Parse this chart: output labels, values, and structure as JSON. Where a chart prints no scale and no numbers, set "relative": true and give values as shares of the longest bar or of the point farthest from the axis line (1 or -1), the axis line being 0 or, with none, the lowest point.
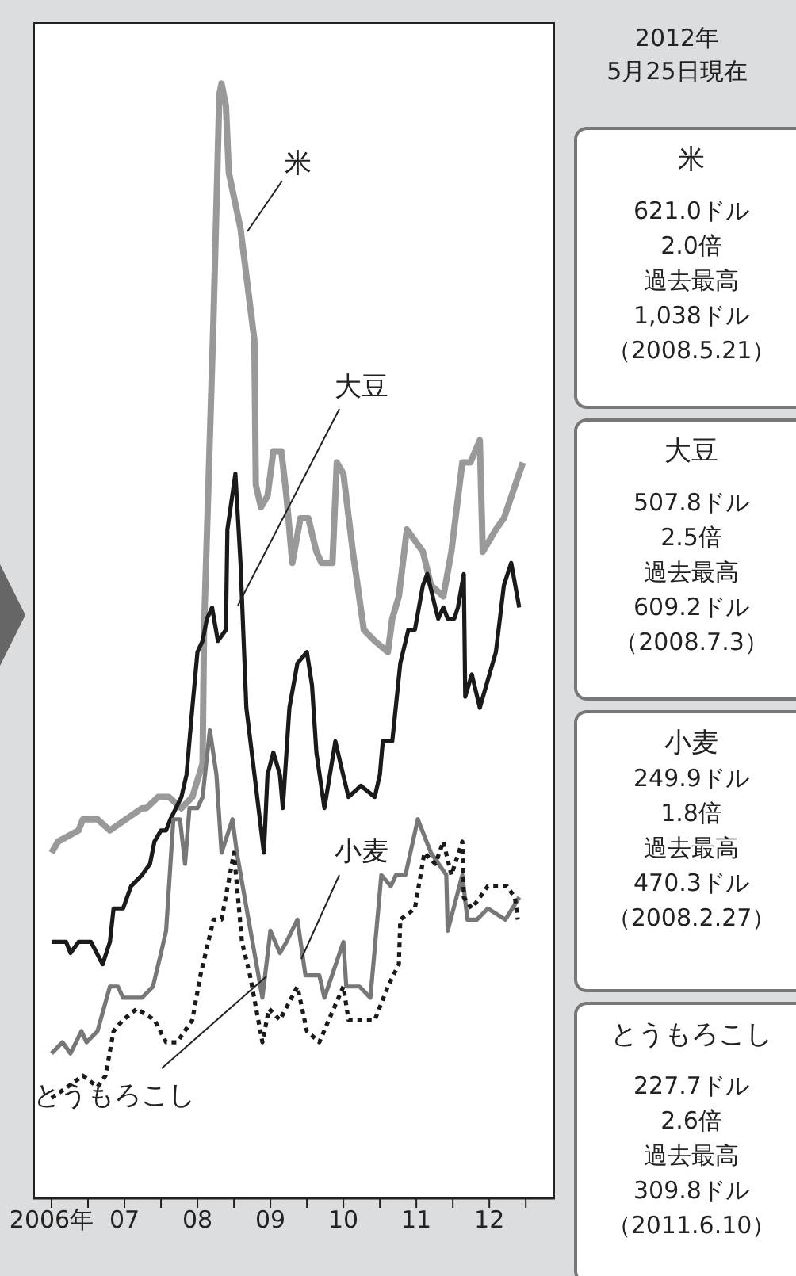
{
  "chart_data": [
    {
      "type": "line",
      "relative": true,
      "xlim": [
        2005.75,
        2012.9
      ],
      "xticks": [
        {
          "value": 2006,
          "label": "2006年"
        },
        {
          "value": 2006.5,
          "label": null
        },
        {
          "value": 2007,
          "label": "07"
        },
        {
          "value": 2007.5,
          "label": null
        },
        {
          "value": 2008,
          "label": "08"
        },
        {
          "value": 2008.5,
          "label": null
        },
        {
          "value": 2009,
          "label": "09"
        },
        {
          "value": 2009.5,
          "label": null
        },
        {
          "value": 2010,
          "label": "10"
        },
        {
          "value": 2010.5,
          "label": null
        },
        {
          "value": 2011,
          "label": "11"
        },
        {
          "value": 2011.5,
          "label": null
        },
        {
          "value": 2012,
          "label": "12"
        },
        {
          "value": 2012.5,
          "label": null
        }
      ],
      "series": [
        {
          "name": "米",
          "color": "#999999",
          "x": [
            2006.0,
            2006.09,
            2006.37,
            2006.43,
            2006.63,
            2006.8,
            2007.02,
            2007.24,
            2007.3,
            2007.46,
            2007.61,
            2007.78,
            2007.93,
            2008.07,
            2008.09,
            2008.22,
            2008.3,
            2008.33,
            2008.39,
            2008.43,
            2008.59,
            2008.78,
            2008.8,
            2008.87,
            2008.96,
            2009.04,
            2009.15,
            2009.22,
            2009.3,
            2009.41,
            2009.52,
            2009.63,
            2009.7,
            2009.85,
            2009.91,
            2010.0,
            2010.13,
            2010.28,
            2010.43,
            2010.61,
            2010.67,
            2010.76,
            2010.87,
            2011.09,
            2011.2,
            2011.37,
            2011.48,
            2011.63,
            2011.74,
            2011.87,
            2011.91,
            2012.09,
            2012.2,
            2012.46
          ],
          "values": [
            0.31,
            0.32,
            0.33,
            0.34,
            0.34,
            0.33,
            0.34,
            0.35,
            0.35,
            0.36,
            0.36,
            0.35,
            0.36,
            0.39,
            0.51,
            0.79,
            0.99,
            1.0,
            0.98,
            0.92,
            0.87,
            0.77,
            0.64,
            0.62,
            0.63,
            0.67,
            0.67,
            0.63,
            0.57,
            0.61,
            0.61,
            0.58,
            0.57,
            0.57,
            0.66,
            0.65,
            0.58,
            0.51,
            0.5,
            0.49,
            0.52,
            0.54,
            0.6,
            0.58,
            0.55,
            0.54,
            0.58,
            0.66,
            0.66,
            0.68,
            0.58,
            0.6,
            0.61,
            0.66
          ]
        },
        {
          "name": "大豆",
          "color": "#1a1a1a",
          "x": [
            2006.0,
            2006.2,
            2006.26,
            2006.37,
            2006.54,
            2006.7,
            2006.8,
            2006.85,
            2006.98,
            2007.09,
            2007.24,
            2007.35,
            2007.41,
            2007.5,
            2007.57,
            2007.63,
            2007.78,
            2007.85,
            2007.93,
            2008.0,
            2008.07,
            2008.13,
            2008.2,
            2008.28,
            2008.39,
            2008.41,
            2008.52,
            2008.59,
            2008.67,
            2008.8,
            2008.91,
            2008.96,
            2009.04,
            2009.13,
            2009.17,
            2009.26,
            2009.37,
            2009.5,
            2009.57,
            2009.63,
            2009.74,
            2009.89,
            2009.96,
            2010.07,
            2010.24,
            2010.43,
            2010.5,
            2010.54,
            2010.67,
            2010.78,
            2010.89,
            2010.98,
            2011.09,
            2011.15,
            2011.26,
            2011.3,
            2011.37,
            2011.43,
            2011.52,
            2011.57,
            2011.65,
            2011.67,
            2011.76,
            2011.87,
            2012.09,
            2012.2,
            2012.3,
            2012.41
          ],
          "values": [
            0.23,
            0.23,
            0.22,
            0.23,
            0.23,
            0.21,
            0.23,
            0.26,
            0.26,
            0.28,
            0.29,
            0.3,
            0.32,
            0.33,
            0.33,
            0.34,
            0.36,
            0.38,
            0.44,
            0.49,
            0.5,
            0.52,
            0.53,
            0.5,
            0.51,
            0.6,
            0.65,
            0.57,
            0.44,
            0.37,
            0.31,
            0.38,
            0.4,
            0.38,
            0.35,
            0.44,
            0.48,
            0.49,
            0.46,
            0.4,
            0.35,
            0.41,
            0.39,
            0.36,
            0.37,
            0.36,
            0.38,
            0.41,
            0.41,
            0.48,
            0.51,
            0.51,
            0.55,
            0.56,
            0.53,
            0.52,
            0.53,
            0.52,
            0.52,
            0.53,
            0.56,
            0.45,
            0.47,
            0.44,
            0.49,
            0.55,
            0.57,
            0.53
          ]
        },
        {
          "name": "小麦",
          "color": "#777777",
          "x": [
            2006.0,
            2006.15,
            2006.26,
            2006.41,
            2006.48,
            2006.63,
            2006.8,
            2006.91,
            2006.98,
            2007.24,
            2007.39,
            2007.5,
            2007.57,
            2007.67,
            2007.76,
            2007.83,
            2007.89,
            2008.0,
            2008.07,
            2008.17,
            2008.26,
            2008.33,
            2008.48,
            2008.54,
            2008.7,
            2008.89,
            2009.0,
            2009.13,
            2009.22,
            2009.37,
            2009.48,
            2009.67,
            2009.74,
            2010.0,
            2010.04,
            2010.22,
            2010.37,
            2010.52,
            2010.65,
            2010.72,
            2010.85,
            2011.02,
            2011.2,
            2011.41,
            2011.43,
            2011.63,
            2011.7,
            2011.83,
            2011.98,
            2012.22,
            2012.41
          ],
          "values": [
            0.13,
            0.14,
            0.13,
            0.15,
            0.14,
            0.15,
            0.19,
            0.19,
            0.18,
            0.18,
            0.19,
            0.22,
            0.24,
            0.34,
            0.34,
            0.3,
            0.35,
            0.35,
            0.36,
            0.42,
            0.38,
            0.31,
            0.34,
            0.31,
            0.25,
            0.18,
            0.24,
            0.22,
            0.23,
            0.25,
            0.2,
            0.2,
            0.18,
            0.23,
            0.19,
            0.19,
            0.18,
            0.29,
            0.28,
            0.29,
            0.29,
            0.34,
            0.31,
            0.29,
            0.24,
            0.29,
            0.25,
            0.25,
            0.26,
            0.25,
            0.27
          ]
        },
        {
          "name": "とうもろこし",
          "color": "#1a1a1a",
          "line_style": "dotted",
          "x": [
            2006.0,
            2006.22,
            2006.43,
            2006.63,
            2006.74,
            2006.85,
            2006.98,
            2007.17,
            2007.41,
            2007.57,
            2007.72,
            2007.93,
            2008.04,
            2008.22,
            2008.33,
            2008.5,
            2008.61,
            2008.72,
            2008.89,
            2008.98,
            2009.13,
            2009.37,
            2009.5,
            2009.67,
            2009.8,
            2010.0,
            2010.07,
            2010.22,
            2010.43,
            2010.61,
            2010.76,
            2010.78,
            2010.98,
            2011.11,
            2011.26,
            2011.37,
            2011.48,
            2011.63,
            2011.65,
            2011.76,
            2011.98,
            2012.24,
            2012.35,
            2012.39
          ],
          "values": [
            0.09,
            0.1,
            0.11,
            0.1,
            0.11,
            0.15,
            0.16,
            0.17,
            0.16,
            0.14,
            0.14,
            0.16,
            0.2,
            0.25,
            0.25,
            0.31,
            0.23,
            0.2,
            0.14,
            0.17,
            0.16,
            0.19,
            0.15,
            0.14,
            0.16,
            0.19,
            0.16,
            0.16,
            0.16,
            0.19,
            0.21,
            0.25,
            0.26,
            0.31,
            0.3,
            0.32,
            0.29,
            0.32,
            0.27,
            0.26,
            0.28,
            0.28,
            0.27,
            0.25
          ]
        }
      ]
    },
    {
      "type": "other",
      "title": "2012年\n5月25日現在",
      "annotations": [
        "米",
        "621.0ドル",
        "2.0倍",
        "過去最高",
        "1,038ドル",
        "（2008.5.21）",
        "大豆",
        "507.8ドル",
        "2.5倍",
        "過去最高",
        "609.2ドル",
        "（2008.7.3）",
        "小麦",
        "249.9ドル",
        "1.8倍",
        "過去最高",
        "470.3ドル",
        "（2008.2.27）",
        "とうもろこし",
        "227.7ドル",
        "2.6倍",
        "過去最高",
        "309.8ドル",
        "（2011.6.10）"
      ]
    }
  ]
}
